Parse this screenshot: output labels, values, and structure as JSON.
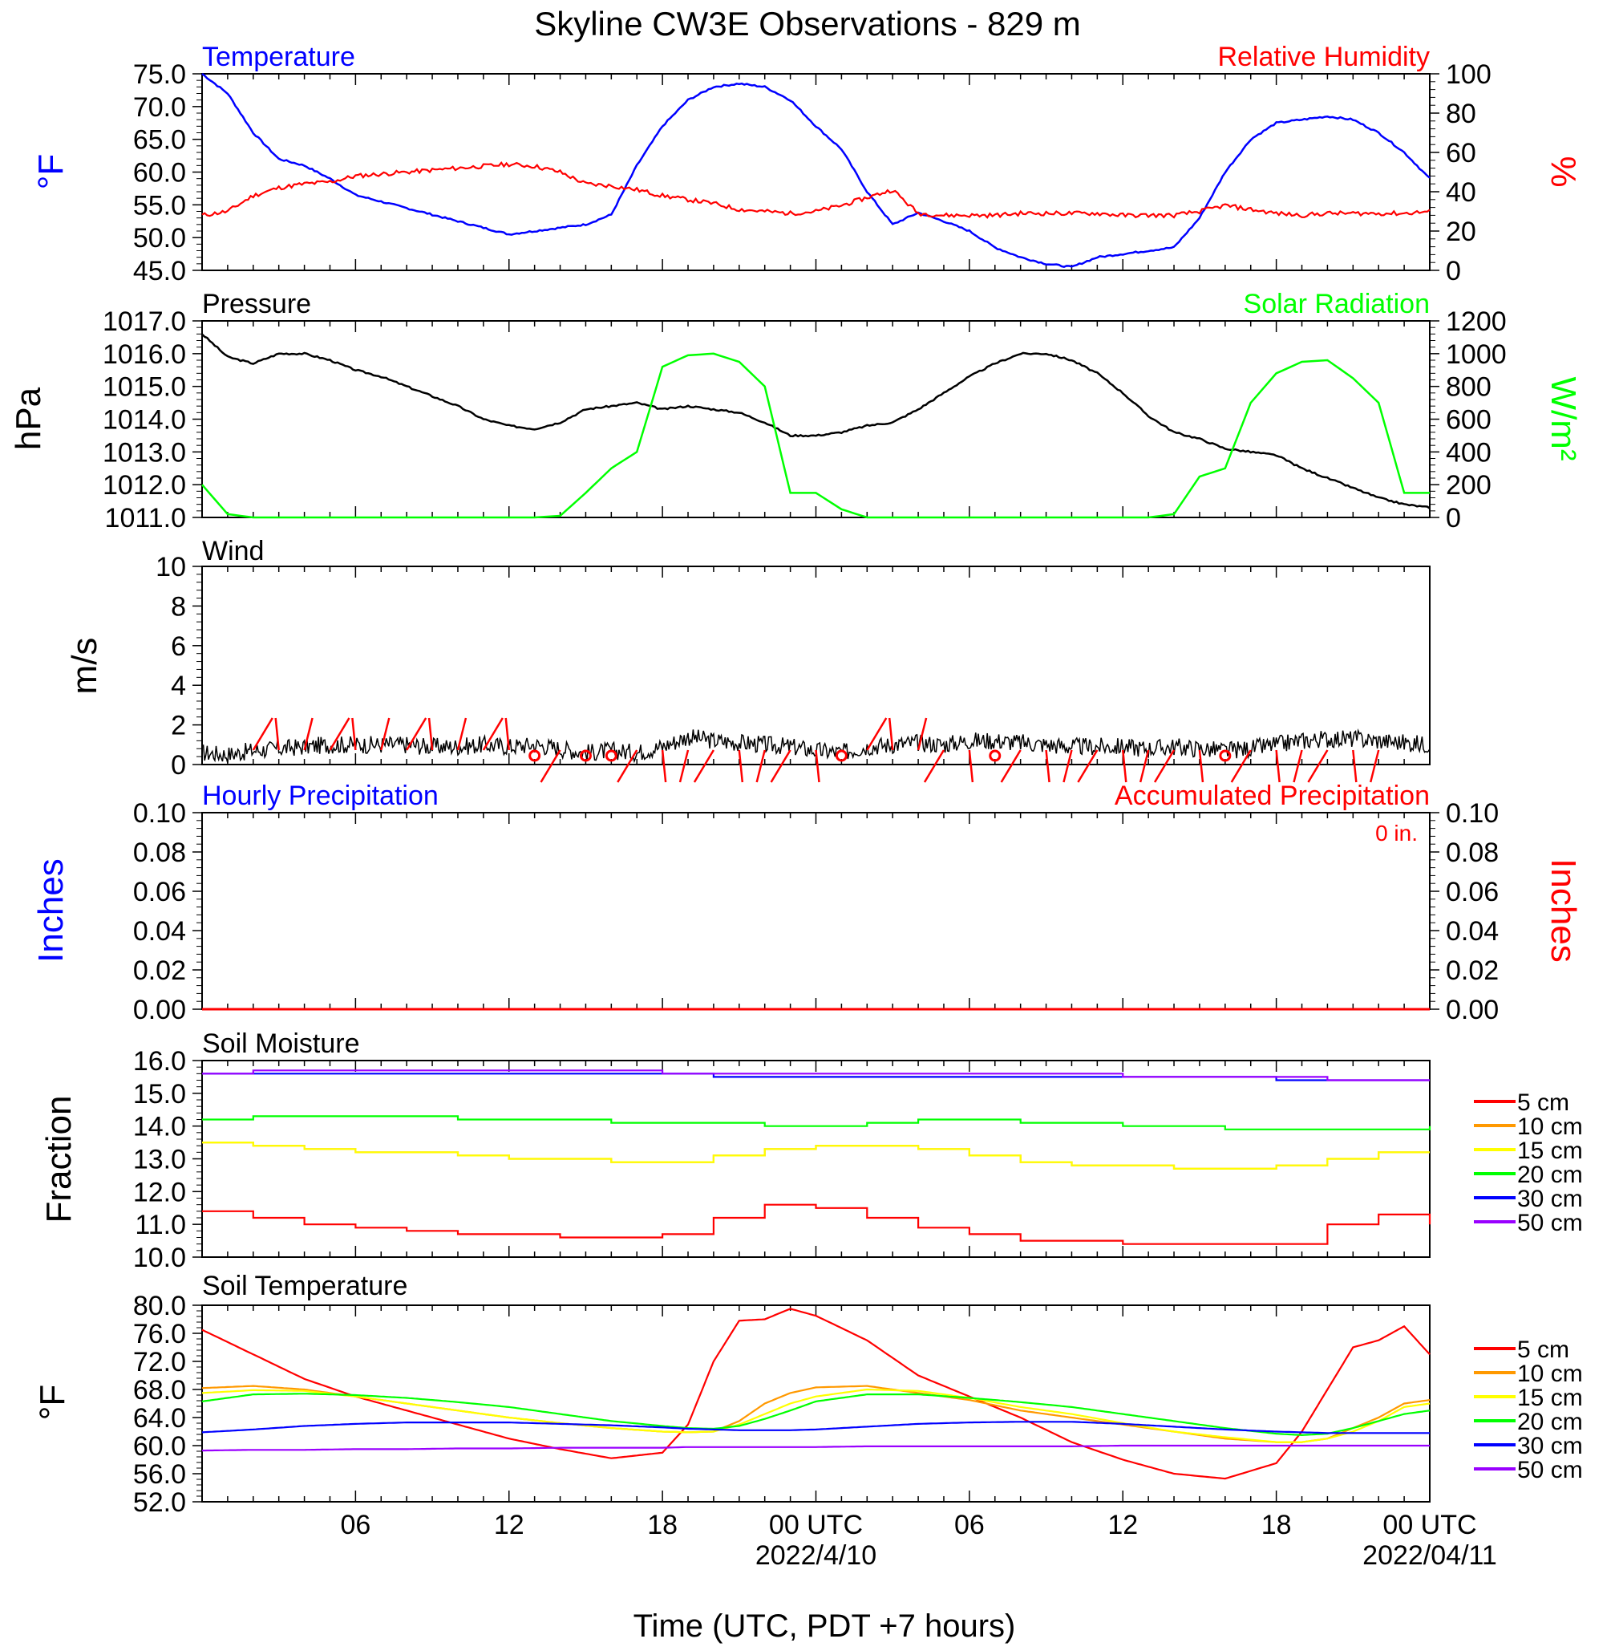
{
  "title": "Skyline CW3E Observations - 829 m",
  "xlabel": "Time (UTC, PDT +7 hours)",
  "x_ticks": [
    "06",
    "12",
    "18",
    "00 UTC",
    "06",
    "12",
    "18",
    "00 UTC"
  ],
  "date_labels": [
    "2022/4/10",
    "2022/04/11"
  ],
  "x_range_hours": [
    0,
    48
  ],
  "colors": {
    "blue": "#0000ff",
    "red": "#ff0000",
    "green": "#00ff00",
    "black": "#000000",
    "orange": "#ff9900",
    "yellow": "#ffff00",
    "purple": "#9900ff"
  },
  "panels": {
    "temp_rh": {
      "left_title": "Temperature",
      "right_title": "Relative Humidity",
      "ylabel_left": "°F",
      "ylabel_right": "%",
      "ylim_left": [
        45,
        75
      ],
      "ylim_right": [
        0,
        100
      ],
      "y_ticks_left": [
        "75.0",
        "70.0",
        "65.0",
        "60.0",
        "55.0",
        "50.0",
        "45.0"
      ],
      "y_ticks_right": [
        "100",
        "80",
        "60",
        "40",
        "20",
        "0"
      ]
    },
    "pressure_solar": {
      "left_title": "Pressure",
      "right_title": "Solar Radiation",
      "ylabel_left": "hPa",
      "ylabel_right": "W/m²",
      "ylim_left": [
        1011,
        1017
      ],
      "ylim_right": [
        0,
        1200
      ],
      "y_ticks_left": [
        "1017.0",
        "1016.0",
        "1015.0",
        "1014.0",
        "1013.0",
        "1012.0",
        "1011.0"
      ],
      "y_ticks_right": [
        "1200",
        "1000",
        "800",
        "600",
        "400",
        "200",
        "0"
      ]
    },
    "wind": {
      "left_title": "Wind",
      "ylabel_left": "m/s",
      "ylim_left": [
        0,
        10
      ],
      "y_ticks_left": [
        "10",
        "8",
        "6",
        "4",
        "2",
        "0"
      ]
    },
    "precip": {
      "left_title": "Hourly Precipitation",
      "right_title": "Accumulated Precipitation",
      "total_label": "0 in.",
      "ylabel_left": "Inches",
      "ylabel_right": "Inches",
      "ylim": [
        0,
        0.1
      ],
      "y_ticks": [
        "0.10",
        "0.08",
        "0.06",
        "0.04",
        "0.02",
        "0.00"
      ]
    },
    "soil_moisture": {
      "left_title": "Soil Moisture",
      "ylabel_left": "Fraction",
      "ylim_left": [
        10,
        16
      ],
      "y_ticks_left": [
        "16.0",
        "15.0",
        "14.0",
        "13.0",
        "12.0",
        "11.0",
        "10.0"
      ]
    },
    "soil_temp": {
      "left_title": "Soil Temperature",
      "ylabel_left": "°F",
      "ylim_left": [
        52,
        80
      ],
      "y_ticks_left": [
        "80.0",
        "76.0",
        "72.0",
        "68.0",
        "64.0",
        "60.0",
        "56.0",
        "52.0"
      ]
    }
  },
  "legend": [
    "5 cm",
    "10 cm",
    "15 cm",
    "20 cm",
    "30 cm",
    "50 cm"
  ],
  "chart_data": [
    {
      "type": "line",
      "title": "Temperature",
      "x": [
        0,
        1,
        2,
        3,
        4,
        5,
        6,
        7,
        8,
        9,
        10,
        11,
        12,
        13,
        14,
        15,
        16,
        17,
        18,
        19,
        20,
        21,
        22,
        23,
        24,
        25,
        26,
        27,
        28,
        29,
        30,
        31,
        32,
        33,
        34,
        35,
        36,
        37,
        38,
        39,
        40,
        41,
        42,
        43,
        44,
        45,
        46,
        47,
        48
      ],
      "series": [
        {
          "name": "Temperature",
          "color": "blue",
          "ylim": [
            45,
            75
          ],
          "values": [
            75,
            72,
            66,
            62,
            61,
            59,
            56.5,
            55.5,
            54.5,
            53.5,
            52.5,
            51.5,
            50.5,
            51,
            51.5,
            52,
            53.5,
            61,
            67,
            71,
            73,
            73.5,
            73,
            71,
            67,
            63.5,
            57,
            52,
            53.8,
            52.5,
            51,
            48.5,
            47,
            46,
            45.5,
            47,
            47.5,
            48,
            48.5,
            53,
            60,
            65,
            67.5,
            68,
            68.5,
            68,
            66,
            63,
            59
          ]
        },
        {
          "name": "Relative Humidity",
          "color": "red",
          "ylim": [
            0,
            100
          ],
          "values": [
            28,
            30,
            38,
            42,
            44,
            45,
            48,
            49,
            50,
            51,
            52,
            53,
            54,
            53,
            50,
            44,
            43,
            41,
            38,
            36,
            34,
            31,
            30,
            29,
            30,
            33,
            37,
            41,
            29,
            28,
            28,
            28,
            29,
            29,
            29,
            29,
            28,
            28,
            28,
            30,
            33,
            31,
            29,
            28,
            29,
            29,
            29,
            29,
            30
          ]
        }
      ]
    },
    {
      "type": "line",
      "title": "Pressure",
      "x": [
        0,
        1,
        2,
        3,
        4,
        5,
        6,
        7,
        8,
        9,
        10,
        11,
        12,
        13,
        14,
        15,
        16,
        17,
        18,
        19,
        20,
        21,
        22,
        23,
        24,
        25,
        26,
        27,
        28,
        29,
        30,
        31,
        32,
        33,
        34,
        35,
        36,
        37,
        38,
        39,
        40,
        41,
        42,
        43,
        44,
        45,
        46,
        47,
        48
      ],
      "series": [
        {
          "name": "Pressure",
          "color": "black",
          "ylim": [
            1011,
            1017
          ],
          "values": [
            1016.6,
            1015.9,
            1015.7,
            1016.0,
            1016.0,
            1015.8,
            1015.5,
            1015.3,
            1015.0,
            1014.7,
            1014.4,
            1014.0,
            1013.8,
            1013.7,
            1013.9,
            1014.3,
            1014.4,
            1014.5,
            1014.3,
            1014.4,
            1014.3,
            1014.2,
            1013.9,
            1013.5,
            1013.5,
            1013.6,
            1013.8,
            1013.9,
            1014.3,
            1014.8,
            1015.3,
            1015.7,
            1016.0,
            1016.0,
            1015.8,
            1015.4,
            1014.8,
            1014.1,
            1013.6,
            1013.4,
            1013.1,
            1013.0,
            1012.9,
            1012.5,
            1012.2,
            1011.9,
            1011.6,
            1011.4,
            1011.3
          ]
        },
        {
          "name": "Solar Radiation",
          "color": "green",
          "ylim": [
            0,
            1200
          ],
          "values": [
            200,
            20,
            0,
            0,
            0,
            0,
            0,
            0,
            0,
            0,
            0,
            0,
            0,
            0,
            10,
            150,
            300,
            400,
            920,
            990,
            1000,
            950,
            800,
            150,
            150,
            50,
            0,
            0,
            0,
            0,
            0,
            0,
            0,
            0,
            0,
            0,
            0,
            0,
            20,
            250,
            300,
            700,
            880,
            950,
            960,
            850,
            700,
            150,
            150
          ]
        }
      ]
    },
    {
      "type": "line",
      "title": "Wind",
      "x": [
        0,
        1,
        2,
        3,
        4,
        5,
        6,
        7,
        8,
        9,
        10,
        11,
        12,
        13,
        14,
        15,
        16,
        17,
        18,
        19,
        20,
        21,
        22,
        23,
        24,
        25,
        26,
        27,
        28,
        29,
        30,
        31,
        32,
        33,
        34,
        35,
        36,
        37,
        38,
        39,
        40,
        41,
        42,
        43,
        44,
        45,
        46,
        47,
        48
      ],
      "series": [
        {
          "name": "Wind",
          "color": "black",
          "ylim": [
            0,
            10
          ],
          "values": [
            0.6,
            0.5,
            0.7,
            0.8,
            0.9,
            1.0,
            1.0,
            1.0,
            1.0,
            0.9,
            0.9,
            1.0,
            0.9,
            1.0,
            0.8,
            0.6,
            0.7,
            0.6,
            0.9,
            1.4,
            1.2,
            1.1,
            1.0,
            0.9,
            0.7,
            0.6,
            0.9,
            1.0,
            1.1,
            1.0,
            1.2,
            1.2,
            1.1,
            1.0,
            0.9,
            0.9,
            0.9,
            0.8,
            0.9,
            0.8,
            0.7,
            0.8,
            1.0,
            1.2,
            1.3,
            1.3,
            1.2,
            1.1,
            1.0
          ]
        }
      ]
    },
    {
      "type": "line",
      "title": "Precipitation",
      "x": [
        0,
        48
      ],
      "series": [
        {
          "name": "Hourly Precipitation",
          "color": "blue",
          "ylim": [
            0,
            0.1
          ],
          "values": [
            0,
            0
          ]
        },
        {
          "name": "Accumulated Precipitation",
          "color": "red",
          "ylim": [
            0,
            0.1
          ],
          "values": [
            0,
            0
          ]
        }
      ]
    },
    {
      "type": "line",
      "title": "Soil Moisture",
      "x": [
        0,
        2,
        4,
        6,
        8,
        10,
        12,
        14,
        16,
        18,
        20,
        22,
        24,
        26,
        28,
        30,
        32,
        34,
        36,
        38,
        40,
        42,
        44,
        46,
        48
      ],
      "series": [
        {
          "name": "5 cm",
          "color": "red",
          "values": [
            11.4,
            11.2,
            11.0,
            10.9,
            10.8,
            10.7,
            10.7,
            10.6,
            10.6,
            10.7,
            11.2,
            11.6,
            11.5,
            11.2,
            10.9,
            10.7,
            10.5,
            10.5,
            10.4,
            10.4,
            10.4,
            10.4,
            11.0,
            11.3,
            11.0
          ]
        },
        {
          "name": "10 cm",
          "color": "orange",
          "values": [
            13.5,
            13.4,
            13.3,
            13.2,
            13.2,
            13.1,
            13.0,
            13.0,
            12.9,
            12.9,
            13.1,
            13.3,
            13.4,
            13.4,
            13.3,
            13.1,
            12.9,
            12.8,
            12.8,
            12.7,
            12.7,
            12.8,
            13.0,
            13.2,
            13.2
          ]
        },
        {
          "name": "15 cm",
          "color": "yellow",
          "values": [
            13.5,
            13.4,
            13.3,
            13.2,
            13.2,
            13.1,
            13.0,
            13.0,
            12.9,
            12.9,
            13.1,
            13.3,
            13.4,
            13.4,
            13.3,
            13.1,
            12.9,
            12.8,
            12.8,
            12.7,
            12.7,
            12.8,
            13.0,
            13.2,
            13.2
          ]
        },
        {
          "name": "20 cm",
          "color": "green",
          "values": [
            14.2,
            14.3,
            14.3,
            14.3,
            14.3,
            14.2,
            14.2,
            14.2,
            14.1,
            14.1,
            14.1,
            14.0,
            14.0,
            14.1,
            14.2,
            14.2,
            14.1,
            14.1,
            14.0,
            14.0,
            13.9,
            13.9,
            13.9,
            13.9,
            14.0
          ]
        },
        {
          "name": "30 cm",
          "color": "blue",
          "values": [
            15.6,
            15.6,
            15.6,
            15.6,
            15.6,
            15.6,
            15.6,
            15.6,
            15.6,
            15.6,
            15.5,
            15.5,
            15.5,
            15.5,
            15.5,
            15.5,
            15.5,
            15.5,
            15.5,
            15.5,
            15.5,
            15.4,
            15.4,
            15.4,
            15.4
          ]
        },
        {
          "name": "50 cm",
          "color": "purple",
          "values": [
            15.6,
            15.7,
            15.7,
            15.7,
            15.7,
            15.7,
            15.7,
            15.7,
            15.7,
            15.6,
            15.6,
            15.6,
            15.6,
            15.6,
            15.6,
            15.6,
            15.6,
            15.6,
            15.5,
            15.5,
            15.5,
            15.5,
            15.4,
            15.4,
            15.4
          ]
        }
      ]
    },
    {
      "type": "line",
      "title": "Soil Temperature",
      "x": [
        0,
        2,
        4,
        6,
        8,
        10,
        12,
        14,
        16,
        18,
        19,
        20,
        21,
        22,
        23,
        24,
        26,
        28,
        30,
        32,
        34,
        36,
        38,
        40,
        42,
        43,
        44,
        45,
        46,
        47,
        48
      ],
      "series": [
        {
          "name": "5 cm",
          "color": "red",
          "values": [
            76.5,
            73,
            69.5,
            67,
            65,
            63,
            61,
            59.5,
            58.2,
            59,
            63,
            72,
            77.8,
            78,
            79.5,
            78.5,
            75,
            70,
            67,
            64,
            60.5,
            58,
            56,
            55.3,
            57.5,
            62,
            68,
            74,
            75,
            77,
            73
          ]
        },
        {
          "name": "10 cm",
          "color": "orange",
          "values": [
            68.2,
            68.5,
            68,
            67,
            66,
            65,
            64,
            63.2,
            62.5,
            62,
            61.9,
            62,
            63.5,
            66,
            67.5,
            68.3,
            68.5,
            67.5,
            66.5,
            65,
            64,
            63,
            62,
            61,
            60.5,
            60.5,
            61,
            62.5,
            64,
            66,
            66.5
          ]
        },
        {
          "name": "15 cm",
          "color": "yellow",
          "values": [
            67.5,
            67.9,
            67.8,
            67,
            66,
            65,
            64,
            63.2,
            62.5,
            62,
            61.9,
            62,
            63,
            64.5,
            66,
            67,
            68,
            67.8,
            66.8,
            65.5,
            64.5,
            63.2,
            62,
            61.2,
            60.5,
            60.5,
            61,
            62,
            63.5,
            65.5,
            66
          ]
        },
        {
          "name": "20 cm",
          "color": "green",
          "values": [
            66.3,
            67.3,
            67.4,
            67.2,
            66.8,
            66.2,
            65.5,
            64.5,
            63.5,
            62.8,
            62.5,
            62.4,
            62.8,
            63.8,
            65,
            66.3,
            67.3,
            67.3,
            66.8,
            66.2,
            65.5,
            64.5,
            63.5,
            62.5,
            61.7,
            61.5,
            61.7,
            62.5,
            63.5,
            64.5,
            65
          ]
        },
        {
          "name": "30 cm",
          "color": "blue",
          "values": [
            61.9,
            62.3,
            62.8,
            63.1,
            63.3,
            63.3,
            63.3,
            63.1,
            62.9,
            62.6,
            62.4,
            62.3,
            62.2,
            62.2,
            62.2,
            62.3,
            62.7,
            63.1,
            63.3,
            63.4,
            63.4,
            63.1,
            62.7,
            62.3,
            62.0,
            61.9,
            61.8,
            61.8,
            61.8,
            61.8,
            61.8
          ]
        },
        {
          "name": "50 cm",
          "color": "purple",
          "values": [
            59.3,
            59.4,
            59.4,
            59.5,
            59.5,
            59.6,
            59.6,
            59.7,
            59.7,
            59.7,
            59.8,
            59.8,
            59.8,
            59.8,
            59.8,
            59.8,
            59.9,
            59.9,
            59.9,
            59.9,
            59.9,
            60.0,
            60.0,
            60.0,
            60.0,
            60.0,
            60.0,
            60.0,
            60.0,
            60.0,
            60.0
          ]
        }
      ]
    }
  ]
}
